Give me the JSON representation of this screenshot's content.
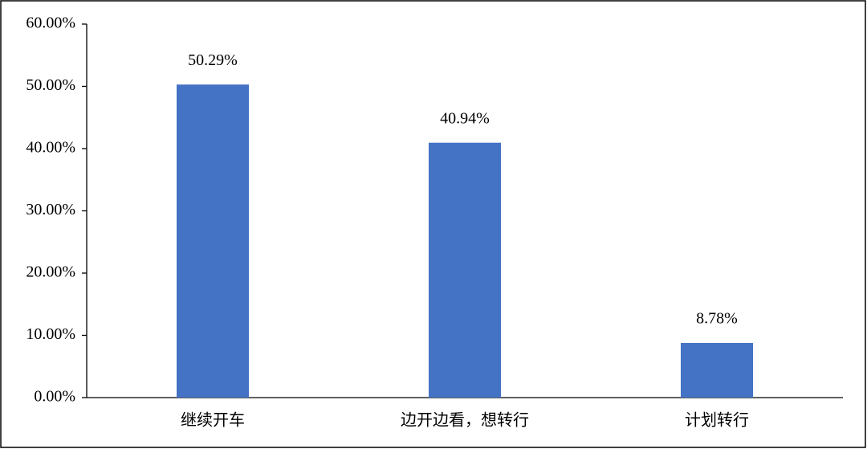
{
  "chart_data": {
    "type": "bar",
    "categories": [
      "继续开车",
      "边开边看，想转行",
      "计划转行"
    ],
    "values": [
      50.29,
      40.94,
      8.78
    ],
    "value_labels": [
      "50.29%",
      "40.94%",
      "8.78%"
    ],
    "color": "#4472c4",
    "ylim": [
      0,
      60
    ],
    "yticks": [
      {
        "value": 0,
        "label": "0.00%"
      },
      {
        "value": 10,
        "label": "10.00%"
      },
      {
        "value": 20,
        "label": "20.00%"
      },
      {
        "value": 30,
        "label": "30.00%"
      },
      {
        "value": 40,
        "label": "40.00%"
      },
      {
        "value": 50,
        "label": "50.00%"
      },
      {
        "value": 60,
        "label": "60.00%"
      }
    ],
    "grid": false
  }
}
